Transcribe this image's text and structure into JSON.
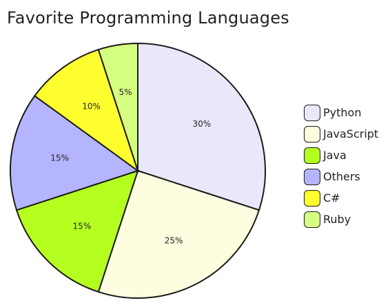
{
  "chart_data": {
    "type": "pie",
    "title": "Favorite Programming Languages",
    "slices": [
      {
        "label": "Python",
        "value": 30,
        "display": "30%",
        "color": "#e8e8fa"
      },
      {
        "label": "JavaScript",
        "value": 25,
        "display": "25%",
        "color": "#fdfde0"
      },
      {
        "label": "Java",
        "value": 15,
        "display": "15%",
        "color": "#b5ff20"
      },
      {
        "label": "Others",
        "value": 15,
        "display": "15%",
        "color": "#b5b5ff"
      },
      {
        "label": "C#",
        "value": 10,
        "display": "10%",
        "color": "#ffff30"
      },
      {
        "label": "Ruby",
        "value": 5,
        "display": "5%",
        "color": "#d5ff80"
      }
    ],
    "legend": {
      "position": "right"
    }
  }
}
